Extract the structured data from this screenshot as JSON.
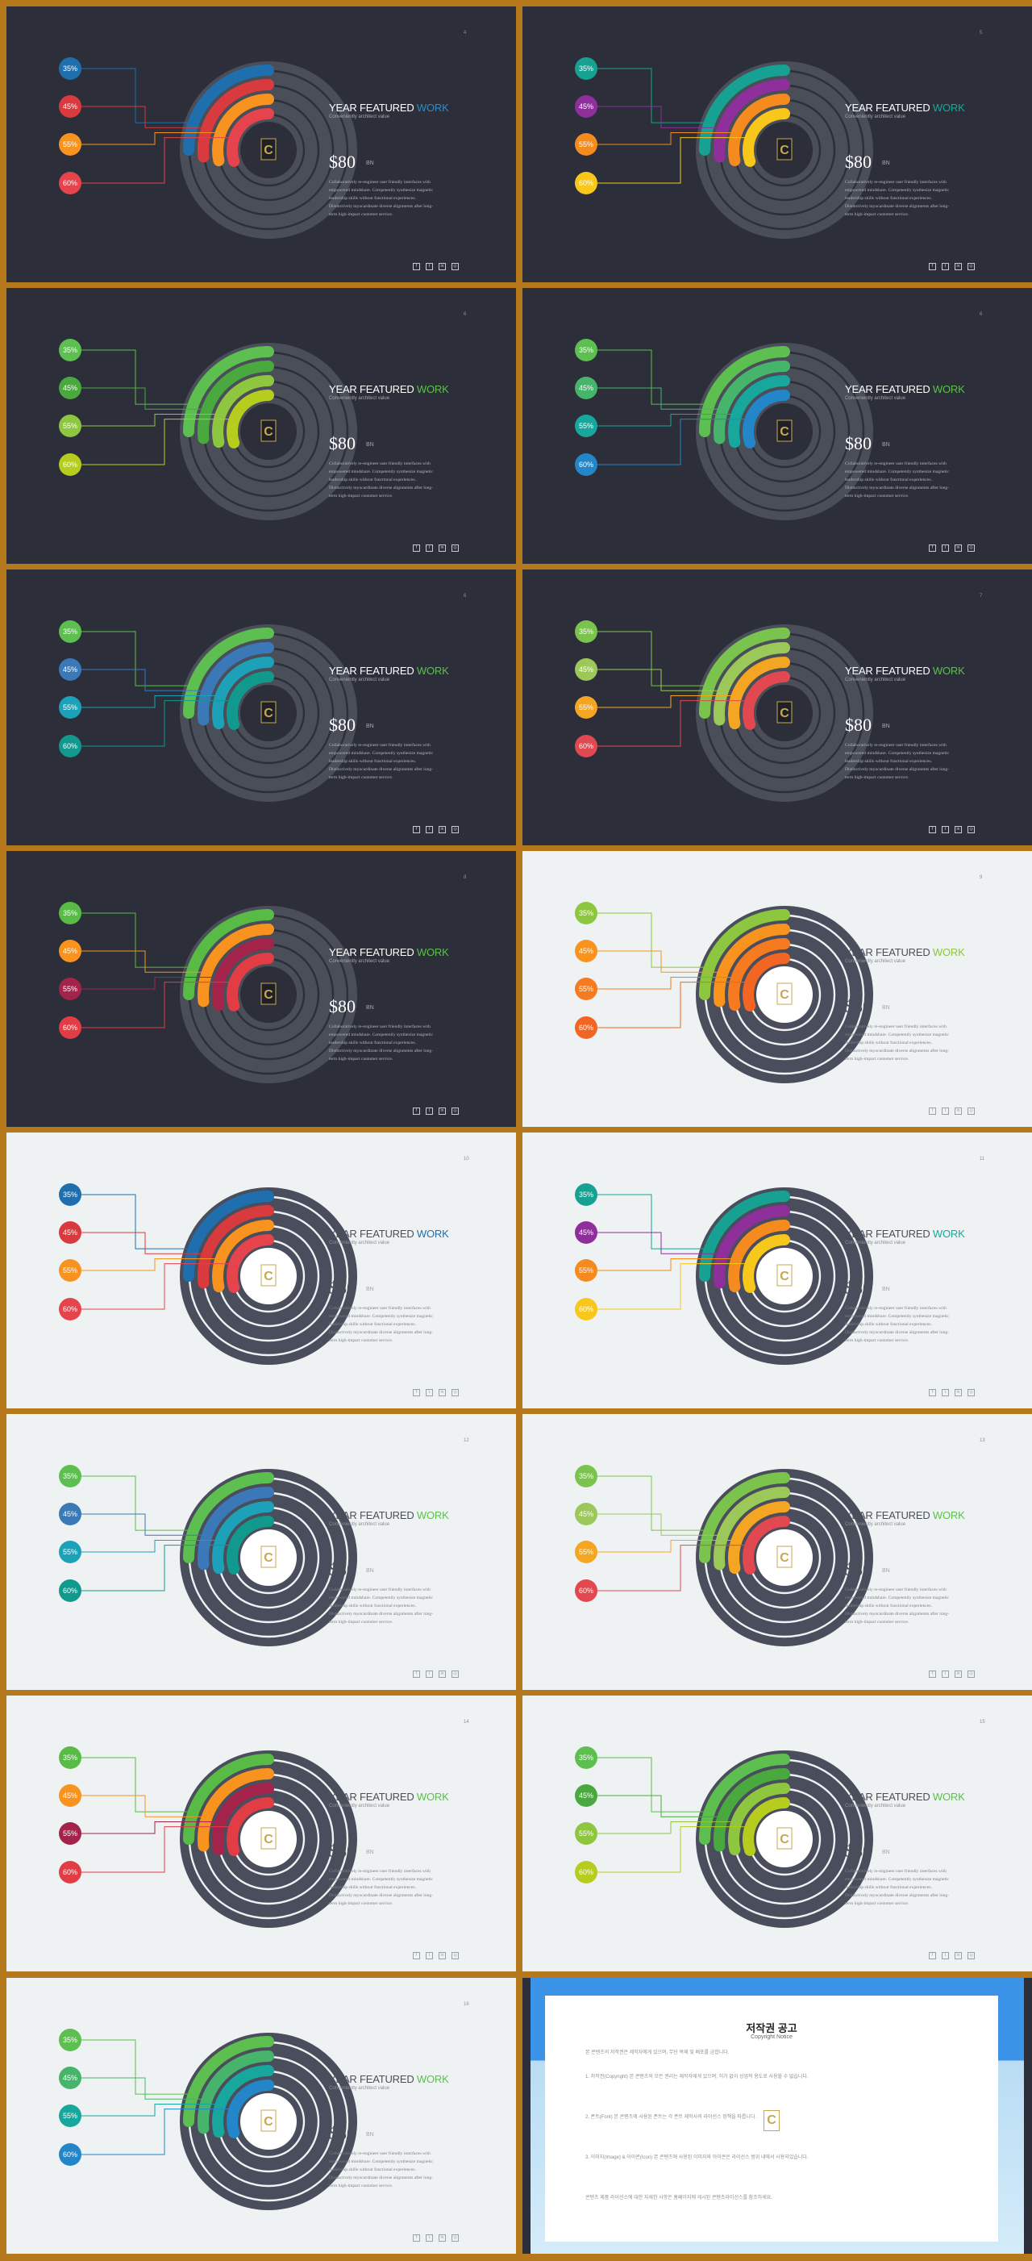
{
  "common": {
    "title_main": "YEAR FEATURED",
    "title_accent": "WORK",
    "subtitle": "Conveniently architect value",
    "price": "$80",
    "price_unit": "BN",
    "description": "Collaboratively re-engineer user friendly interfaces with empowered mindshare. Competently synthesize magnetic leadership skills without functional experiences. Distinctively myocardinate diverse alignments after long-term high-impact customer service.",
    "social_icons": [
      "facebook-icon",
      "twitter-icon",
      "linkedin-icon",
      "instagram-icon"
    ],
    "social_glyphs": [
      "f",
      "t",
      "in",
      "◎"
    ],
    "logo_letter": "C"
  },
  "slides": [
    {
      "page": "4",
      "theme": "dark",
      "accent": "#2e8bc9",
      "colors": [
        "#1f6fae",
        "#d93a3e",
        "#f7931e",
        "#e5444d"
      ],
      "values": [
        "35%",
        "45%",
        "55%",
        "60%"
      ]
    },
    {
      "page": "5",
      "theme": "dark",
      "accent": "#17a89a",
      "colors": [
        "#16a192",
        "#8e2f9c",
        "#f58a1f",
        "#f7c81b"
      ],
      "values": [
        "35%",
        "45%",
        "55%",
        "60%"
      ]
    },
    {
      "page": "6",
      "theme": "dark",
      "accent": "#5cc04a",
      "colors": [
        "#5cbf4f",
        "#4aa93e",
        "#8ec63f",
        "#b6cc1e"
      ],
      "values": [
        "35%",
        "45%",
        "55%",
        "60%"
      ]
    },
    {
      "page": "6",
      "theme": "dark",
      "accent": "#5cc04a",
      "colors": [
        "#5cbf4f",
        "#46b46b",
        "#17a79c",
        "#2286c8"
      ],
      "values": [
        "35%",
        "45%",
        "55%",
        "60%"
      ]
    },
    {
      "page": "6",
      "theme": "dark",
      "accent": "#5cc04a",
      "colors": [
        "#5cbf4f",
        "#3a78b8",
        "#1da1b8",
        "#11998e"
      ],
      "values": [
        "35%",
        "45%",
        "55%",
        "60%"
      ]
    },
    {
      "page": "7",
      "theme": "dark",
      "accent": "#5cc04a",
      "colors": [
        "#7ac44d",
        "#9cc85a",
        "#f4a522",
        "#e1484f"
      ],
      "values": [
        "35%",
        "45%",
        "55%",
        "60%"
      ]
    },
    {
      "page": "8",
      "theme": "dark",
      "accent": "#5cc04a",
      "colors": [
        "#58bb46",
        "#f7931e",
        "#a4234a",
        "#e23c45"
      ],
      "values": [
        "35%",
        "45%",
        "55%",
        "60%"
      ]
    },
    {
      "page": "9",
      "theme": "light",
      "accent": "#8dc63f",
      "colors": [
        "#8dc63f",
        "#f7931e",
        "#f57a20",
        "#f26522"
      ],
      "values": [
        "35%",
        "45%",
        "55%",
        "60%"
      ]
    },
    {
      "page": "10",
      "theme": "light",
      "accent": "#1f6fae",
      "colors": [
        "#1f6fae",
        "#d93a3e",
        "#f7931e",
        "#e5444d"
      ],
      "values": [
        "35%",
        "45%",
        "55%",
        "60%"
      ]
    },
    {
      "page": "11",
      "theme": "light",
      "accent": "#17a89a",
      "colors": [
        "#16a192",
        "#8e2f9c",
        "#f58a1f",
        "#f7c81b"
      ],
      "values": [
        "35%",
        "45%",
        "55%",
        "60%"
      ]
    },
    {
      "page": "12",
      "theme": "light",
      "accent": "#5cc04a",
      "colors": [
        "#5cbf4f",
        "#3a78b8",
        "#1da1b8",
        "#11998e"
      ],
      "values": [
        "35%",
        "45%",
        "55%",
        "60%"
      ]
    },
    {
      "page": "13",
      "theme": "light",
      "accent": "#5cc04a",
      "colors": [
        "#7ac44d",
        "#9cc85a",
        "#f4a522",
        "#e1484f"
      ],
      "values": [
        "35%",
        "45%",
        "55%",
        "60%"
      ]
    },
    {
      "page": "14",
      "theme": "light",
      "accent": "#5cc04a",
      "colors": [
        "#58bb46",
        "#f7931e",
        "#a4234a",
        "#e23c45"
      ],
      "values": [
        "35%",
        "45%",
        "55%",
        "60%"
      ]
    },
    {
      "page": "15",
      "theme": "light",
      "accent": "#5cc04a",
      "colors": [
        "#5cbf4f",
        "#4aa93e",
        "#8ec63f",
        "#b6cc1e"
      ],
      "values": [
        "35%",
        "45%",
        "55%",
        "60%"
      ]
    },
    {
      "page": "16",
      "theme": "light",
      "accent": "#5cc04a",
      "colors": [
        "#5cbf4f",
        "#46b46b",
        "#17a79c",
        "#2286c8"
      ],
      "values": [
        "35%",
        "45%",
        "55%",
        "60%"
      ]
    }
  ],
  "copyright": {
    "title": "저작권 공고",
    "subtitle": "Copyright Notice",
    "paragraphs": [
      "본 콘텐츠의 저작권은 제작자에게 있으며, 무단 복제 및 배포를 금합니다.",
      "1. 저작권(Copyright) 본 콘텐츠의 모든 권리는 제작자에게 있으며, 허가 없이 상업적 용도로 사용할 수 없습니다.",
      "2. 폰트(Font) 본 콘텐츠에 사용된 폰트는 각 폰트 제작사의 라이선스 정책을 따릅니다.",
      "3. 이미지(Image) & 아이콘(Icon) 본 콘텐츠에 사용된 이미지와 아이콘은 라이선스 범위 내에서 사용되었습니다.",
      "콘텐츠 제품 라이선스에 대한 자세한 사항은 홈페이지에 게시된 콘텐츠라이선스를 참조하세요."
    ],
    "logo_letter": "C"
  }
}
